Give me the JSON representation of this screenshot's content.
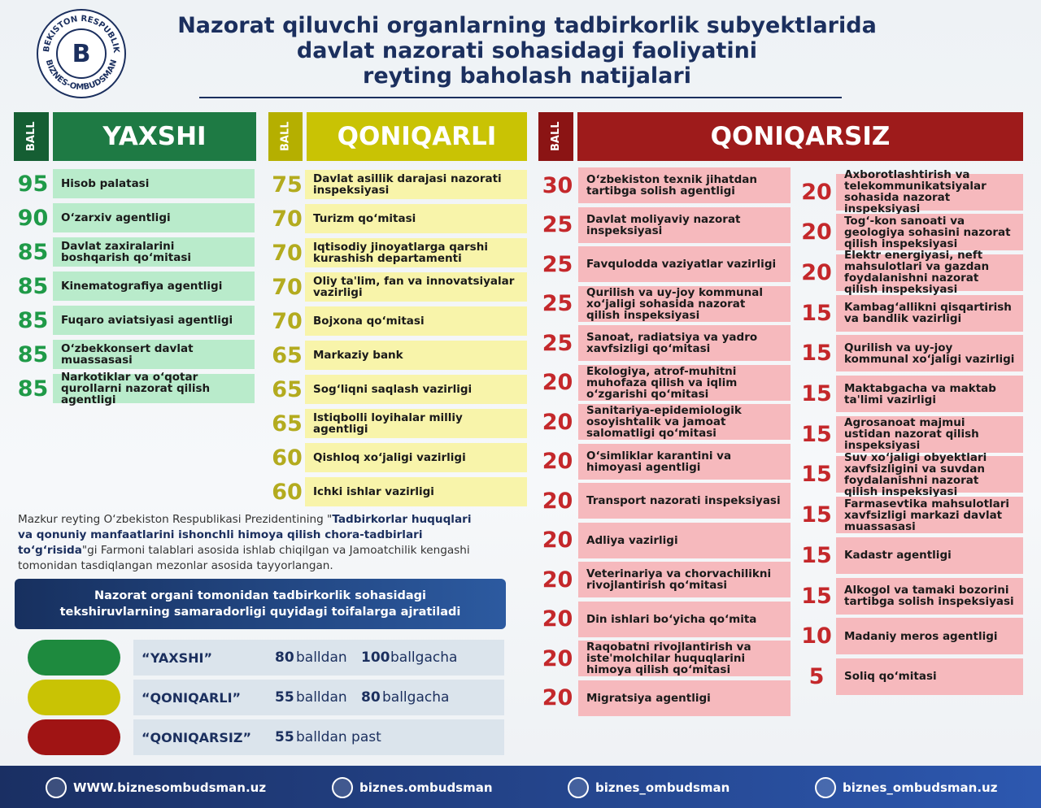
{
  "logo": {
    "top": "O‘ZBEKISTON RESPUBLIKASI",
    "bottom": "BIZNES-OMBUDSMAN"
  },
  "header": {
    "title": [
      "Nazorat qiluvchi organlarning tadbirkorlik subyektlarida",
      "davlat nazorati sohasidagi faoliyatini",
      "reyting baholash natijalari"
    ]
  },
  "groups": [
    {
      "ball": "BALL",
      "title": "YAXSHI",
      "items": [
        {
          "score": 95,
          "name": "Hisob palatasi"
        },
        {
          "score": 90,
          "name": "O‘zarxiv agentligi"
        },
        {
          "score": 85,
          "name": "Davlat zaxiralarini boshqarish qo‘mitasi"
        },
        {
          "score": 85,
          "name": "Kinematografiya agentligi"
        },
        {
          "score": 85,
          "name": "Fuqaro aviatsiyasi agentligi"
        },
        {
          "score": 85,
          "name": "O‘zbekkonsert davlat muassasasi"
        },
        {
          "score": 85,
          "name": "Narkotiklar va o‘qotar qurollarni nazorat qilish agentligi"
        }
      ]
    },
    {
      "ball": "BALL",
      "title": "QONIQARLI",
      "items": [
        {
          "score": 75,
          "name": "Davlat asillik darajasi nazorati inspeksiyasi"
        },
        {
          "score": 70,
          "name": "Turizm qo‘mitasi"
        },
        {
          "score": 70,
          "name": "Iqtisodiy jinoyatlarga qarshi kurashish departamenti"
        },
        {
          "score": 70,
          "name": "Oliy ta'lim, fan va innovatsiyalar vazirligi"
        },
        {
          "score": 70,
          "name": "Bojxona qo‘mitasi"
        },
        {
          "score": 65,
          "name": "Markaziy bank"
        },
        {
          "score": 65,
          "name": "Sog‘liqni saqlash vazirligi"
        },
        {
          "score": 65,
          "name": "Istiqbolli loyihalar milliy agentligi"
        },
        {
          "score": 60,
          "name": "Qishloq xo‘jaligi vazirligi"
        },
        {
          "score": 60,
          "name": "Ichki ishlar vazirligi"
        }
      ]
    },
    {
      "ball": "BALL",
      "title": "QONIQARSIZ",
      "items": [
        {
          "score": 30,
          "name": "O‘zbekiston texnik jihatdan tartibga solish agentligi"
        },
        {
          "score": 25,
          "name": "Davlat moliyaviy nazorat inspeksiyasi"
        },
        {
          "score": 25,
          "name": "Favqulodda vaziyatlar vazirligi"
        },
        {
          "score": 25,
          "name": "Qurilish va uy-joy kommunal xo‘jaligi sohasida nazorat qilish inspeksiyasi"
        },
        {
          "score": 25,
          "name": "Sanoat, radiatsiya va yadro xavfsizligi qo‘mitasi"
        },
        {
          "score": 20,
          "name": "Ekologiya, atrof-muhitni muhofaza qilish va iqlim o‘zgarishi qo‘mitasi"
        },
        {
          "score": 20,
          "name": "Sanitariya-epidemiologik osoyishtalik va jamoat salomatligi qo‘mitasi"
        },
        {
          "score": 20,
          "name": "O‘simliklar karantini va himoyasi agentligi"
        },
        {
          "score": 20,
          "name": "Transport nazorati inspeksiyasi"
        },
        {
          "score": 20,
          "name": "Adliya vazirligi"
        },
        {
          "score": 20,
          "name": "Veterinariya va chorvachilikni rivojlantirish qo‘mitasi"
        },
        {
          "score": 20,
          "name": "Din ishlari bo‘yicha qo‘mita"
        },
        {
          "score": 20,
          "name": "Raqobatni rivojlantirish va iste'molchilar huquqlarini himoya qilish qo‘mitasi"
        },
        {
          "score": 20,
          "name": "Migratsiya agentligi"
        },
        {
          "score": 20,
          "name": "Axborotlashtirish va telekommunikatsiyalar sohasida nazorat inspeksiyasi"
        },
        {
          "score": 20,
          "name": "Tog‘-kon sanoati va geologiya sohasini nazorat qilish inspeksiyasi"
        },
        {
          "score": 20,
          "name": "Elektr energiyasi, neft mahsulotlari va gazdan foydalanishni nazorat qilish inspeksiyasi"
        },
        {
          "score": 15,
          "name": "Kambag‘allikni qisqartirish va bandlik vazirligi"
        },
        {
          "score": 15,
          "name": "Qurilish va uy-joy kommunal xo‘jaligi vazirligi"
        },
        {
          "score": 15,
          "name": "Maktabgacha va maktab ta'limi vazirligi"
        },
        {
          "score": 15,
          "name": "Agrosanoat majmui ustidan nazorat qilish inspeksiyasi"
        },
        {
          "score": 15,
          "name": "Suv xo‘jaligi obyektlari xavfsizligini va suvdan foydalanishni nazorat qilish inspeksiyasi"
        },
        {
          "score": 15,
          "name": "Farmasevtika mahsulotlari xavfsizligi markazi davlat muassasasi"
        },
        {
          "score": 15,
          "name": "Kadastr agentligi"
        },
        {
          "score": 15,
          "name": "Alkogol va tamaki bozorini tartibga solish inspeksiyasi"
        },
        {
          "score": 10,
          "name": "Madaniy meros agentligi"
        },
        {
          "score": 5,
          "name": "Soliq qo‘mitasi"
        }
      ]
    }
  ],
  "note": {
    "parts": [
      "Mazkur reyting O‘zbekiston Respublikasi Prezidentining \"",
      "Tadbirkorlar huquqlari va qonuniy manfaatlarini ishonchli himoya qilish chora-tadbirlari to‘g‘risida",
      "\"gi Farmoni talablari asosida ishlab chiqilgan va Jamoatchilik kengashi tomonidan tasdiqlangan mezonlar asosida tayyorlangan."
    ]
  },
  "banner": "Nazorat organi tomonidan tadbirkorlik sohasidagi tekshiruvlarning samaradorligi quyidagi toifalarga ajratiladi",
  "legend": [
    {
      "label": "“YAXSHI”",
      "from": 80,
      "from_text": "balldan",
      "to": 100,
      "to_text": "ballgacha"
    },
    {
      "label": "“QONIQARLI”",
      "from": 55,
      "from_text": "balldan",
      "to": 80,
      "to_text": "ballgacha"
    },
    {
      "label": "“QONIQARSIZ”",
      "from": 55,
      "from_text": "balldan past"
    }
  ],
  "footer": [
    "WWW.biznesombudsman.uz",
    "biznes.ombudsman",
    "biznes_ombudsman",
    "biznes_ombudsman.uz"
  ]
}
